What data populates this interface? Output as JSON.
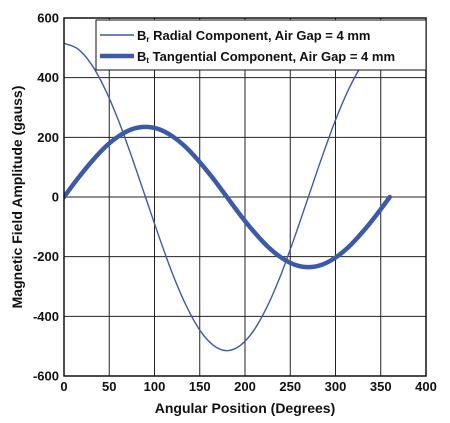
{
  "chart_data": {
    "type": "line",
    "xlabel": "Angular Position (Degrees)",
    "ylabel": "Magnetic Field Amplitude (gauss)",
    "xlim": [
      0,
      400
    ],
    "ylim": [
      -600,
      600
    ],
    "xticks": [
      0,
      50,
      100,
      150,
      200,
      250,
      300,
      350,
      400
    ],
    "yticks": [
      600,
      400,
      200,
      0,
      -200,
      -400,
      -600
    ],
    "grid": true,
    "legend_position": "top-right",
    "series": [
      {
        "name": "B",
        "subscript": "r",
        "label_rest": " Radial Component, Air Gap = 4 mm",
        "color": "#3c5aa6",
        "style": "thin",
        "x": [
          0,
          15,
          30,
          45,
          60,
          75,
          90,
          105,
          120,
          135,
          150,
          165,
          180,
          195,
          210,
          225,
          240,
          255,
          270,
          285,
          300,
          315,
          330,
          345,
          360
        ],
        "y": [
          515,
          497,
          446,
          364,
          258,
          133,
          0,
          -133,
          -258,
          -364,
          -446,
          -497,
          -515,
          -497,
          -446,
          -364,
          -258,
          -133,
          0,
          133,
          258,
          364,
          446,
          497,
          515
        ]
      },
      {
        "name": "B",
        "subscript": "t",
        "label_rest": " Tangential Component, Air Gap = 4 mm",
        "color": "#3c5aa6",
        "style": "thick",
        "x": [
          0,
          15,
          30,
          45,
          60,
          75,
          90,
          105,
          120,
          135,
          150,
          165,
          180,
          195,
          210,
          225,
          240,
          255,
          270,
          285,
          300,
          315,
          330,
          345,
          360
        ],
        "y": [
          0,
          61,
          117,
          166,
          203,
          227,
          235,
          227,
          203,
          166,
          117,
          61,
          0,
          -61,
          -117,
          -166,
          -203,
          -227,
          -235,
          -227,
          -203,
          -166,
          -117,
          -61,
          0
        ]
      }
    ]
  }
}
